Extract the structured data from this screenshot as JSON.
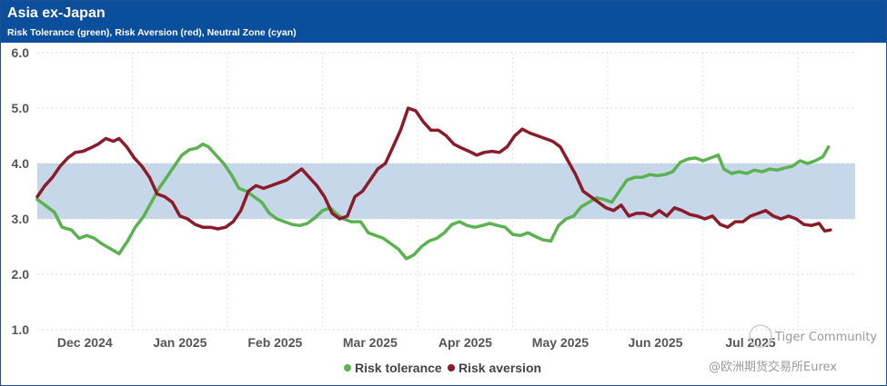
{
  "header": {
    "title": "Asia ex-Japan",
    "subtitle": "Risk Tolerance (green), Risk Aversion (red), Neutral Zone (cyan)"
  },
  "watermark": {
    "line1": "Tiger Community",
    "line2": "@欧洲期货交易所Eurex"
  },
  "colors": {
    "header_bg": "#0b4f9c",
    "risk_tolerance": "#5bb350",
    "risk_aversion": "#8b1a2a",
    "neutral_zone": "#c5d7e8"
  },
  "chart_data": {
    "type": "line",
    "title": "Asia ex-Japan",
    "subtitle": "Risk Tolerance (green), Risk Aversion (red), Neutral Zone (cyan)",
    "xlabel": "",
    "ylabel": "",
    "ylim": [
      1.0,
      6.0
    ],
    "yticks": [
      "1.0",
      "2.0",
      "3.0",
      "4.0",
      "5.0",
      "6.0"
    ],
    "x_range": [
      0,
      8.6
    ],
    "x_ticks": [
      {
        "label": "Dec 2024",
        "pos": 0.5
      },
      {
        "label": "Jan 2025",
        "pos": 1.5
      },
      {
        "label": "Feb 2025",
        "pos": 2.5
      },
      {
        "label": "Mar 2025",
        "pos": 3.5
      },
      {
        "label": "Apr 2025",
        "pos": 4.5
      },
      {
        "label": "May 2025",
        "pos": 5.5
      },
      {
        "label": "Jun 2025",
        "pos": 6.5
      },
      {
        "label": "Jul 2025",
        "pos": 7.5
      }
    ],
    "grid": true,
    "legend_position": "bottom-center",
    "neutral_zone": [
      3.0,
      4.0
    ],
    "series": [
      {
        "name": "Risk tolerance",
        "color": "#5bb350",
        "points": [
          [
            0.0,
            3.35
          ],
          [
            0.08,
            3.25
          ],
          [
            0.18,
            3.12
          ],
          [
            0.26,
            2.85
          ],
          [
            0.36,
            2.8
          ],
          [
            0.44,
            2.65
          ],
          [
            0.52,
            2.7
          ],
          [
            0.6,
            2.65
          ],
          [
            0.68,
            2.55
          ],
          [
            0.78,
            2.45
          ],
          [
            0.86,
            2.37
          ],
          [
            0.95,
            2.6
          ],
          [
            1.03,
            2.85
          ],
          [
            1.12,
            3.05
          ],
          [
            1.2,
            3.3
          ],
          [
            1.28,
            3.55
          ],
          [
            1.36,
            3.75
          ],
          [
            1.44,
            3.95
          ],
          [
            1.52,
            4.15
          ],
          [
            1.6,
            4.25
          ],
          [
            1.68,
            4.28
          ],
          [
            1.74,
            4.35
          ],
          [
            1.8,
            4.3
          ],
          [
            1.88,
            4.15
          ],
          [
            1.96,
            4.0
          ],
          [
            2.04,
            3.8
          ],
          [
            2.12,
            3.55
          ],
          [
            2.2,
            3.5
          ],
          [
            2.28,
            3.4
          ],
          [
            2.36,
            3.3
          ],
          [
            2.44,
            3.1
          ],
          [
            2.52,
            3.0
          ],
          [
            2.6,
            2.95
          ],
          [
            2.68,
            2.9
          ],
          [
            2.76,
            2.88
          ],
          [
            2.84,
            2.92
          ],
          [
            2.92,
            3.02
          ],
          [
            3.0,
            3.15
          ],
          [
            3.08,
            3.2
          ],
          [
            3.14,
            3.1
          ],
          [
            3.22,
            3.0
          ],
          [
            3.3,
            2.95
          ],
          [
            3.4,
            2.95
          ],
          [
            3.48,
            2.75
          ],
          [
            3.56,
            2.7
          ],
          [
            3.64,
            2.65
          ],
          [
            3.72,
            2.55
          ],
          [
            3.8,
            2.45
          ],
          [
            3.88,
            2.28
          ],
          [
            3.96,
            2.35
          ],
          [
            4.04,
            2.5
          ],
          [
            4.12,
            2.6
          ],
          [
            4.2,
            2.65
          ],
          [
            4.28,
            2.75
          ],
          [
            4.36,
            2.9
          ],
          [
            4.44,
            2.95
          ],
          [
            4.52,
            2.88
          ],
          [
            4.6,
            2.85
          ],
          [
            4.68,
            2.88
          ],
          [
            4.76,
            2.92
          ],
          [
            4.84,
            2.88
          ],
          [
            4.92,
            2.85
          ],
          [
            5.0,
            2.72
          ],
          [
            5.08,
            2.7
          ],
          [
            5.16,
            2.75
          ],
          [
            5.24,
            2.68
          ],
          [
            5.32,
            2.62
          ],
          [
            5.4,
            2.6
          ],
          [
            5.48,
            2.88
          ],
          [
            5.56,
            3.0
          ],
          [
            5.64,
            3.05
          ],
          [
            5.72,
            3.22
          ],
          [
            5.8,
            3.3
          ],
          [
            5.88,
            3.38
          ],
          [
            5.96,
            3.35
          ],
          [
            6.04,
            3.3
          ],
          [
            6.12,
            3.5
          ],
          [
            6.2,
            3.7
          ],
          [
            6.28,
            3.75
          ],
          [
            6.36,
            3.75
          ],
          [
            6.44,
            3.8
          ],
          [
            6.52,
            3.78
          ],
          [
            6.6,
            3.8
          ],
          [
            6.68,
            3.85
          ],
          [
            6.76,
            4.02
          ],
          [
            6.84,
            4.08
          ],
          [
            6.92,
            4.1
          ],
          [
            7.0,
            4.05
          ],
          [
            7.08,
            4.1
          ],
          [
            7.16,
            4.15
          ],
          [
            7.22,
            3.9
          ],
          [
            7.3,
            3.82
          ],
          [
            7.38,
            3.85
          ],
          [
            7.46,
            3.82
          ],
          [
            7.54,
            3.88
          ],
          [
            7.62,
            3.85
          ],
          [
            7.7,
            3.9
          ],
          [
            7.78,
            3.88
          ],
          [
            7.86,
            3.92
          ],
          [
            7.94,
            3.95
          ],
          [
            8.02,
            4.05
          ],
          [
            8.1,
            4.0
          ],
          [
            8.18,
            4.05
          ],
          [
            8.26,
            4.12
          ],
          [
            8.32,
            4.3
          ]
        ]
      },
      {
        "name": "Risk aversion",
        "color": "#8b1a2a",
        "points": [
          [
            0.0,
            3.4
          ],
          [
            0.08,
            3.6
          ],
          [
            0.16,
            3.75
          ],
          [
            0.24,
            3.95
          ],
          [
            0.32,
            4.1
          ],
          [
            0.4,
            4.2
          ],
          [
            0.48,
            4.22
          ],
          [
            0.56,
            4.28
          ],
          [
            0.64,
            4.35
          ],
          [
            0.72,
            4.45
          ],
          [
            0.8,
            4.4
          ],
          [
            0.86,
            4.45
          ],
          [
            0.94,
            4.3
          ],
          [
            1.02,
            4.1
          ],
          [
            1.1,
            3.95
          ],
          [
            1.18,
            3.75
          ],
          [
            1.26,
            3.45
          ],
          [
            1.34,
            3.4
          ],
          [
            1.42,
            3.3
          ],
          [
            1.5,
            3.05
          ],
          [
            1.58,
            3.0
          ],
          [
            1.66,
            2.9
          ],
          [
            1.74,
            2.85
          ],
          [
            1.82,
            2.85
          ],
          [
            1.9,
            2.82
          ],
          [
            1.98,
            2.85
          ],
          [
            2.06,
            2.95
          ],
          [
            2.14,
            3.15
          ],
          [
            2.22,
            3.5
          ],
          [
            2.3,
            3.6
          ],
          [
            2.38,
            3.55
          ],
          [
            2.46,
            3.6
          ],
          [
            2.54,
            3.65
          ],
          [
            2.62,
            3.7
          ],
          [
            2.7,
            3.8
          ],
          [
            2.78,
            3.9
          ],
          [
            2.86,
            3.75
          ],
          [
            2.94,
            3.6
          ],
          [
            3.02,
            3.4
          ],
          [
            3.1,
            3.1
          ],
          [
            3.18,
            3.0
          ],
          [
            3.26,
            3.05
          ],
          [
            3.34,
            3.4
          ],
          [
            3.42,
            3.5
          ],
          [
            3.5,
            3.7
          ],
          [
            3.58,
            3.9
          ],
          [
            3.66,
            4.0
          ],
          [
            3.74,
            4.3
          ],
          [
            3.82,
            4.6
          ],
          [
            3.9,
            5.0
          ],
          [
            3.98,
            4.95
          ],
          [
            4.06,
            4.75
          ],
          [
            4.14,
            4.6
          ],
          [
            4.22,
            4.6
          ],
          [
            4.3,
            4.5
          ],
          [
            4.38,
            4.35
          ],
          [
            4.46,
            4.28
          ],
          [
            4.54,
            4.22
          ],
          [
            4.62,
            4.15
          ],
          [
            4.7,
            4.2
          ],
          [
            4.78,
            4.22
          ],
          [
            4.86,
            4.2
          ],
          [
            4.94,
            4.3
          ],
          [
            5.02,
            4.5
          ],
          [
            5.1,
            4.62
          ],
          [
            5.18,
            4.55
          ],
          [
            5.26,
            4.5
          ],
          [
            5.34,
            4.45
          ],
          [
            5.42,
            4.4
          ],
          [
            5.5,
            4.3
          ],
          [
            5.58,
            4.05
          ],
          [
            5.66,
            3.8
          ],
          [
            5.74,
            3.5
          ],
          [
            5.82,
            3.4
          ],
          [
            5.9,
            3.3
          ],
          [
            5.98,
            3.2
          ],
          [
            6.06,
            3.15
          ],
          [
            6.14,
            3.25
          ],
          [
            6.22,
            3.05
          ],
          [
            6.3,
            3.1
          ],
          [
            6.38,
            3.1
          ],
          [
            6.46,
            3.05
          ],
          [
            6.54,
            3.15
          ],
          [
            6.62,
            3.05
          ],
          [
            6.7,
            3.2
          ],
          [
            6.78,
            3.15
          ],
          [
            6.86,
            3.08
          ],
          [
            6.94,
            3.05
          ],
          [
            7.02,
            3.0
          ],
          [
            7.1,
            3.05
          ],
          [
            7.18,
            2.9
          ],
          [
            7.26,
            2.85
          ],
          [
            7.34,
            2.95
          ],
          [
            7.42,
            2.95
          ],
          [
            7.5,
            3.05
          ],
          [
            7.58,
            3.1
          ],
          [
            7.66,
            3.15
          ],
          [
            7.74,
            3.05
          ],
          [
            7.82,
            3.0
          ],
          [
            7.9,
            3.05
          ],
          [
            7.98,
            3.0
          ],
          [
            8.06,
            2.9
          ],
          [
            8.14,
            2.88
          ],
          [
            8.22,
            2.92
          ],
          [
            8.28,
            2.78
          ],
          [
            8.34,
            2.8
          ]
        ]
      }
    ]
  }
}
